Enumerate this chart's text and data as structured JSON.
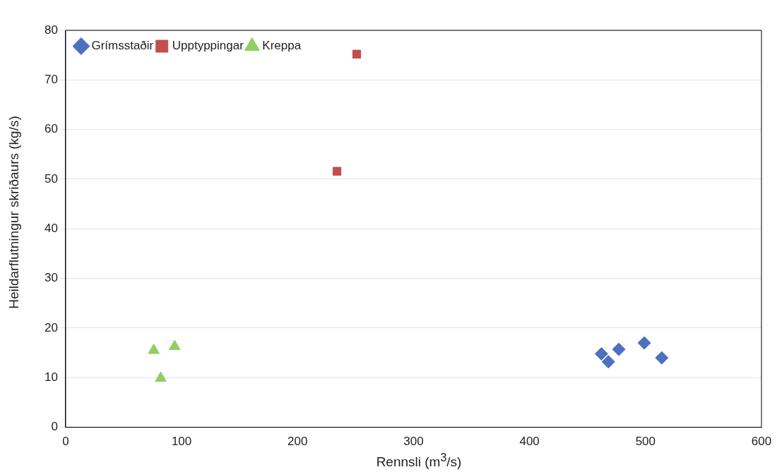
{
  "chart_data": {
    "type": "scatter",
    "xlabel": "Rennsli (m$^{3}$/s)",
    "ylabel": "Heildarflutningur skriðaurs (kg/s)",
    "xlim": [
      0,
      600
    ],
    "xticks": [
      0,
      100,
      200,
      300,
      400,
      500,
      600
    ],
    "ylim": [
      0,
      80
    ],
    "yticks": [
      0,
      10,
      20,
      30,
      40,
      50,
      60,
      70,
      80
    ],
    "grid": "y",
    "legend": "top left",
    "series": [
      {
        "name": "Grímsstaðir",
        "color": "#4f6fc0",
        "marker": "diamond",
        "x": [
          462,
          468,
          477,
          499,
          514
        ],
        "values": [
          14.8,
          13.2,
          15.7,
          17.0,
          14.0
        ]
      },
      {
        "name": "Upptyppingar",
        "color": "#c0504d",
        "marker": "square",
        "x": [
          234,
          251
        ],
        "values": [
          51.6,
          75.2
        ]
      },
      {
        "name": "Kreppa",
        "color": "#8fcf5f",
        "marker": "triangle",
        "x": [
          76,
          82,
          94
        ],
        "values": [
          15.5,
          9.9,
          16.3
        ]
      }
    ]
  }
}
